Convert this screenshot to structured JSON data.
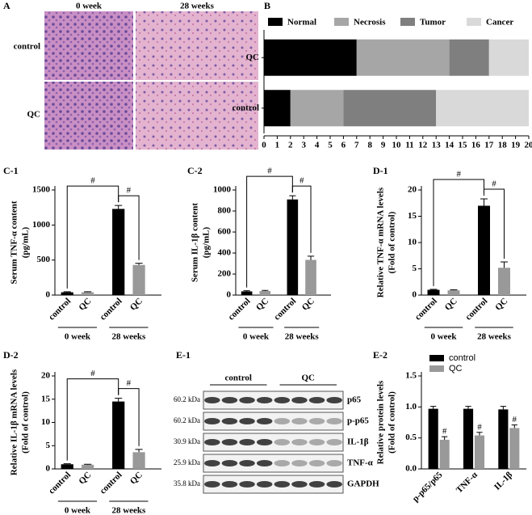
{
  "panel_a": {
    "label": "A",
    "columns": [
      "0 week",
      "28 weeks"
    ],
    "rows": [
      "control",
      "QC"
    ]
  },
  "panel_e1": {
    "label": "E-1",
    "groups": [
      "control",
      "QC"
    ],
    "rows": [
      {
        "mw": "60.2 kDa",
        "protein": "p65"
      },
      {
        "mw": "60.2 kDa",
        "protein": "p-p65"
      },
      {
        "mw": "30.9 kDa",
        "protein": "IL-1β"
      },
      {
        "mw": "25.9 kDa",
        "protein": "TNF-α"
      },
      {
        "mw": "35.8 kDa",
        "protein": "GAPDH"
      }
    ]
  },
  "chart_data": [
    {
      "type": "stacked_barh",
      "label": "B",
      "categories": [
        "QC",
        "control"
      ],
      "series": [
        {
          "name": "Normal",
          "color": "#000000",
          "values": [
            7,
            2
          ]
        },
        {
          "name": "Necrosis",
          "color": "#a6a6a6",
          "values": [
            7,
            4
          ]
        },
        {
          "name": "Tumor",
          "color": "#7f7f7f",
          "values": [
            3,
            7
          ]
        },
        {
          "name": "Cancer",
          "color": "#d9d9d9",
          "values": [
            3,
            7
          ]
        }
      ],
      "xlim": [
        0,
        20
      ],
      "xticks": [
        0,
        1,
        2,
        3,
        4,
        5,
        6,
        7,
        8,
        9,
        10,
        11,
        12,
        13,
        14,
        15,
        16,
        17,
        18,
        19,
        20
      ]
    },
    {
      "type": "bar",
      "label": "C-1",
      "ylabel": [
        "Serum TNF-α content",
        "(pg/mL)"
      ],
      "categories": [
        "control",
        "QC",
        "control",
        "QC"
      ],
      "group_labels": [
        "0 week",
        "28 weeks"
      ],
      "values": [
        40,
        40,
        1230,
        430
      ],
      "errors": [
        8,
        8,
        50,
        25
      ],
      "colors": [
        "#000000",
        "#999999",
        "#000000",
        "#999999"
      ],
      "annotations": [
        "#",
        "#"
      ],
      "ylim": [
        0,
        1500
      ],
      "yticks": [
        0,
        500,
        1000,
        1500
      ]
    },
    {
      "type": "bar",
      "label": "C-2",
      "ylabel": [
        "Serum IL-1β content",
        "(pg/mL)"
      ],
      "categories": [
        "control",
        "QC",
        "control",
        "QC"
      ],
      "group_labels": [
        "0 week",
        "28 weeks"
      ],
      "values": [
        35,
        38,
        910,
        335
      ],
      "errors": [
        6,
        6,
        35,
        35
      ],
      "colors": [
        "#000000",
        "#999999",
        "#000000",
        "#999999"
      ],
      "annotations": [
        "#",
        "#"
      ],
      "ylim": [
        0,
        1000
      ],
      "yticks": [
        0,
        200,
        400,
        600,
        800,
        1000
      ]
    },
    {
      "type": "bar",
      "label": "D-1",
      "ylabel": [
        "Relative TNF-α mRNA levels",
        "(Fold of control)"
      ],
      "categories": [
        "control",
        "QC",
        "control",
        "QC"
      ],
      "group_labels": [
        "0 week",
        "28 weeks"
      ],
      "values": [
        1,
        0.9,
        17,
        5.2
      ],
      "errors": [
        0.1,
        0.1,
        1.3,
        1.1
      ],
      "colors": [
        "#000000",
        "#999999",
        "#000000",
        "#999999"
      ],
      "annotations": [
        "#",
        "#"
      ],
      "ylim": [
        0,
        20
      ],
      "yticks": [
        0,
        5,
        10,
        15,
        20
      ]
    },
    {
      "type": "bar",
      "label": "D-2",
      "ylabel": [
        "Relative IL-1β mRNA levels",
        "(Fold of control)"
      ],
      "categories": [
        "control",
        "QC",
        "control",
        "QC"
      ],
      "group_labels": [
        "0 week",
        "28 weeks"
      ],
      "values": [
        1,
        0.9,
        14.5,
        3.6
      ],
      "errors": [
        0.1,
        0.1,
        0.7,
        0.6
      ],
      "colors": [
        "#000000",
        "#999999",
        "#000000",
        "#999999"
      ],
      "annotations": [
        "#",
        "#"
      ],
      "ylim": [
        0,
        20
      ],
      "yticks": [
        0,
        5,
        10,
        15,
        20
      ]
    },
    {
      "type": "grouped_bar",
      "label": "E-2",
      "ylabel": [
        "Relative protein levels",
        "(Fold of control)"
      ],
      "categories": [
        "p-p65/p65",
        "TNF-α",
        "IL-1β"
      ],
      "series": [
        {
          "name": "control",
          "color": "#000000",
          "values": [
            0.97,
            0.97,
            0.96
          ],
          "errors": [
            0.04,
            0.04,
            0.05
          ]
        },
        {
          "name": "QC",
          "color": "#999999",
          "values": [
            0.47,
            0.54,
            0.66
          ],
          "errors": [
            0.05,
            0.05,
            0.05
          ]
        }
      ],
      "annotations": [
        "#",
        "#",
        "#"
      ],
      "ylim": [
        0,
        1.5
      ],
      "yticks": [
        {
          "value": 0,
          "label": "0.0"
        },
        {
          "value": 0.5,
          "label": "0.5"
        },
        {
          "value": 1,
          "label": "1.0"
        },
        {
          "value": 1.5,
          "label": "1.5"
        }
      ]
    }
  ]
}
